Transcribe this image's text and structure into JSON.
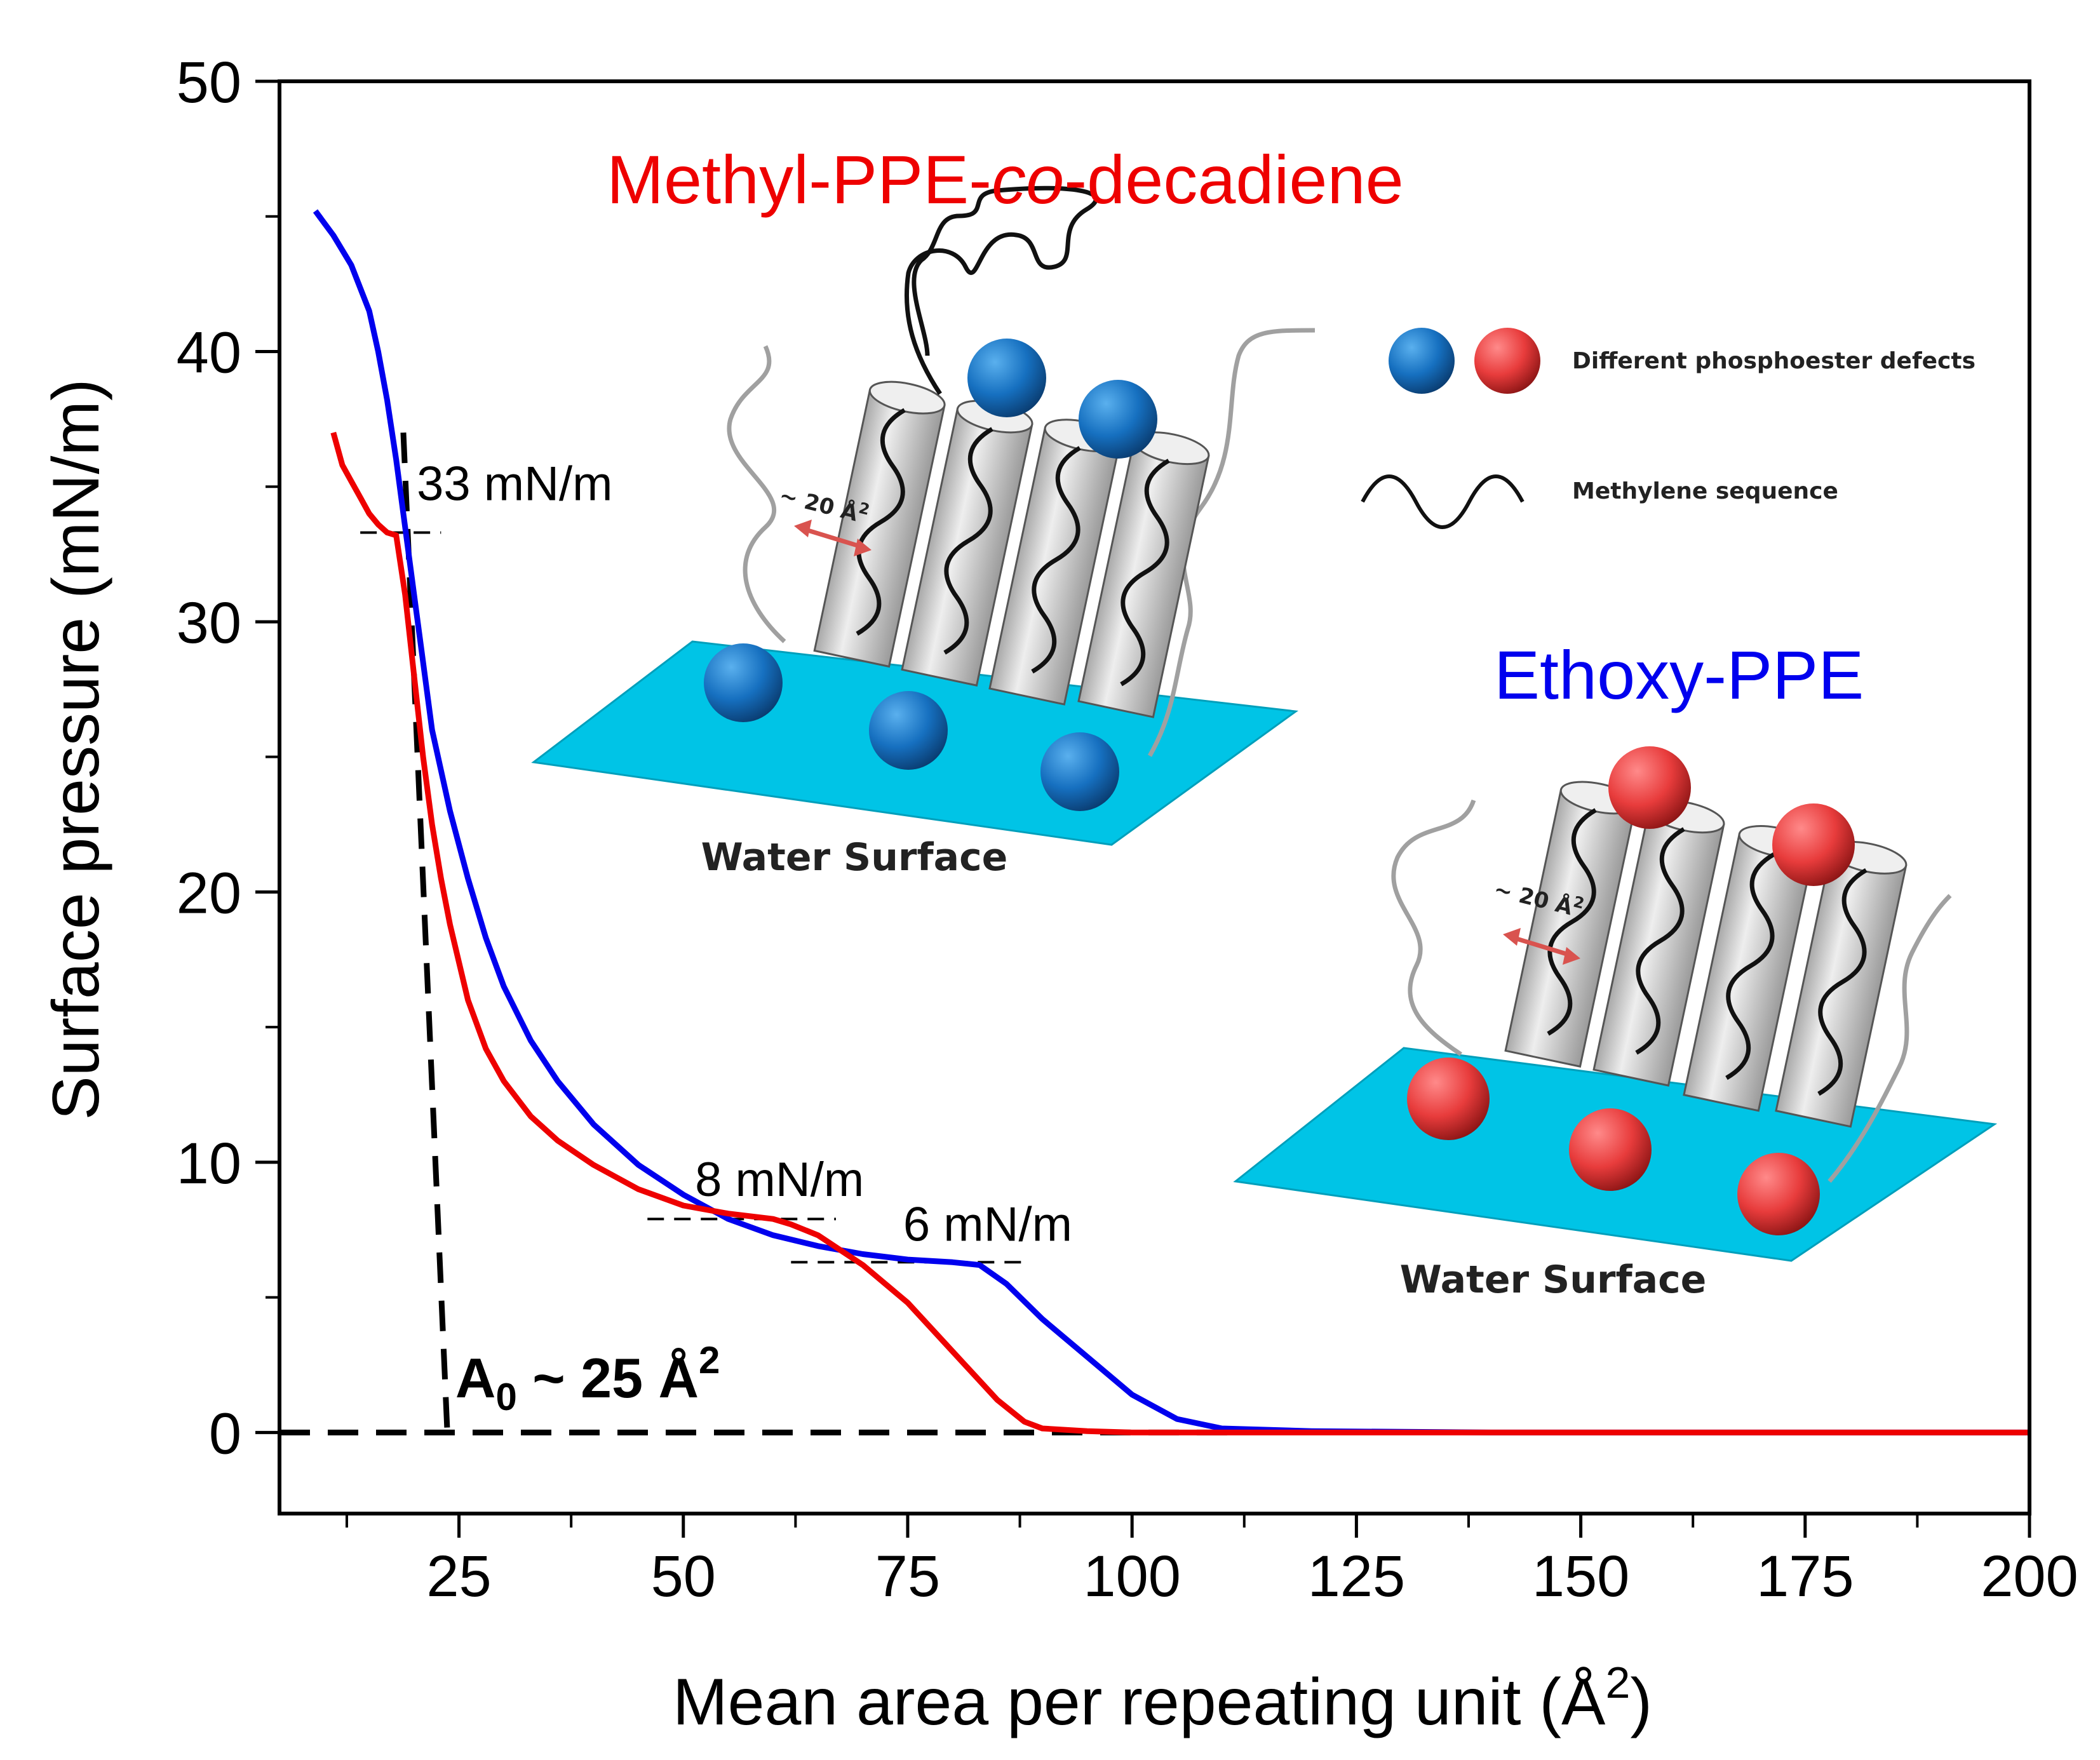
{
  "chart_data": {
    "type": "line",
    "xlabel": "Mean area per repeating unit (Å",
    "xlabel_sup": "2",
    "xlabel_end": ")",
    "ylabel": "Surface pressure (mN/m)",
    "xlim": [
      5,
      200
    ],
    "ylim": [
      -3,
      50
    ],
    "x_ticks": [
      25,
      50,
      75,
      100,
      125,
      150,
      175,
      200
    ],
    "x_tick_labels": [
      "25",
      "50",
      "75",
      "100",
      "125",
      "150",
      "175",
      "200"
    ],
    "y_ticks": [
      0,
      10,
      20,
      30,
      40,
      50
    ],
    "y_tick_labels": [
      "0",
      "10",
      "20",
      "30",
      "40",
      "50"
    ],
    "x_minor_step": 12.5,
    "y_minor_step": 5,
    "series": [
      {
        "name": "Ethoxy-PPE",
        "color": "#0000ee",
        "x": [
          9,
          11,
          13,
          15,
          16,
          17,
          18,
          19,
          20,
          21,
          22,
          24,
          26,
          28,
          30,
          33,
          36,
          40,
          45,
          50,
          55,
          60,
          65,
          70,
          75,
          80,
          83,
          86,
          90,
          95,
          100,
          105,
          110,
          120,
          140,
          160,
          180,
          200
        ],
        "y": [
          45.2,
          44.3,
          43.2,
          41.5,
          40.0,
          38.2,
          36.0,
          33.5,
          31.0,
          28.5,
          26.0,
          23.0,
          20.5,
          18.3,
          16.5,
          14.5,
          13.0,
          11.4,
          9.9,
          8.8,
          7.9,
          7.3,
          6.9,
          6.6,
          6.4,
          6.3,
          6.2,
          5.5,
          4.2,
          2.8,
          1.4,
          0.5,
          0.15,
          0.05,
          0.0,
          0.0,
          0.0,
          0.0
        ]
      },
      {
        "name": "Methyl-PPE-co-decadiene",
        "color": "#ee0000",
        "x": [
          11,
          12,
          13,
          14,
          15,
          16,
          17,
          18,
          19,
          20,
          21,
          22,
          23,
          24,
          26,
          28,
          30,
          33,
          36,
          40,
          45,
          50,
          55,
          60,
          62,
          65,
          70,
          75,
          80,
          85,
          88,
          90,
          95,
          100,
          120,
          140,
          160,
          180,
          200
        ],
        "y": [
          37.0,
          35.8,
          35.2,
          34.6,
          34.0,
          33.6,
          33.3,
          33.2,
          31.0,
          28.0,
          25.0,
          22.5,
          20.5,
          18.8,
          16.0,
          14.2,
          13.0,
          11.7,
          10.8,
          9.9,
          9.0,
          8.4,
          8.1,
          7.9,
          7.7,
          7.3,
          6.2,
          4.8,
          3.0,
          1.2,
          0.4,
          0.15,
          0.05,
          0.0,
          0.0,
          0.0,
          0.0,
          0.0,
          0.0
        ]
      }
    ],
    "annotations": [
      {
        "id": "ann-33",
        "text": "33 mN/m"
      },
      {
        "id": "ann-8",
        "text": "8 mN/m"
      },
      {
        "id": "ann-6",
        "text": "6 mN/m"
      },
      {
        "id": "ann-a0",
        "text": "A",
        "sub": "0",
        "mid": " ~ 25 Å",
        "sup": "2"
      }
    ],
    "guide_lines": [
      {
        "name": "tangent-line",
        "x": [
          18.8,
          23.7
        ],
        "y": [
          37,
          0
        ]
      },
      {
        "name": "baseline-dashed",
        "x": [
          5,
          112
        ],
        "y": [
          0,
          0
        ]
      },
      {
        "name": "plateau-33-dashed",
        "x": [
          14,
          23
        ],
        "y": [
          33.3,
          33.3
        ]
      },
      {
        "name": "plateau-8-dashed",
        "x": [
          46,
          67
        ],
        "y": [
          7.9,
          7.9
        ]
      },
      {
        "name": "plateau-6-dashed",
        "x": [
          62,
          88
        ],
        "y": [
          6.3,
          6.3
        ]
      }
    ]
  },
  "series_titles": {
    "methyl": {
      "prefix": "Methyl-PPE-",
      "italic": "co",
      "suffix": "-decadiene",
      "color": "#ee0000"
    },
    "ethoxy": {
      "text": "Ethoxy-PPE",
      "color": "#0000ee"
    }
  },
  "insets": {
    "left_label": "Water Surface",
    "right_label": "Water Surface",
    "left_spacing": "~ 20 Å",
    "left_spacing_sup": "2",
    "right_spacing": "~ 20 Å",
    "right_spacing_sup": "2"
  },
  "legend": {
    "defects_label": "Different phosphoester defects",
    "methylene_label": "Methylene sequence"
  },
  "colors": {
    "water": "#00c4e6",
    "blue_ball": "#1670c0",
    "red_ball": "#e83c3c",
    "cylinder": "#d8d8d8"
  }
}
